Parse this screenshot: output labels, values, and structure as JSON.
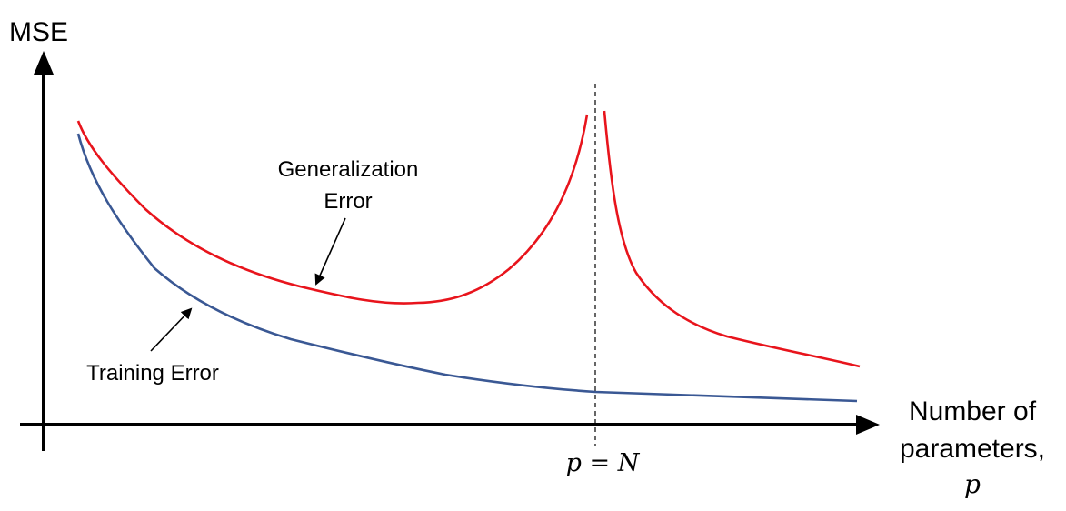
{
  "figure": {
    "y_axis_label": "MSE",
    "x_axis_label_lines": [
      "Number of",
      "parameters,"
    ],
    "x_axis_symbol": "p",
    "threshold_label": "p = N",
    "generalization_label_lines": [
      "Generalization",
      "Error"
    ],
    "training_label": "Training  Error",
    "colors": {
      "generalization": "#e8141c",
      "training": "#3a5894",
      "axis": "#000000",
      "threshold": "#000000"
    }
  }
}
